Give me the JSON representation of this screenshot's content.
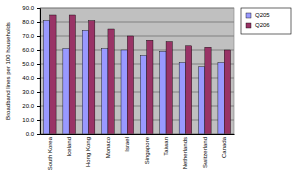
{
  "chart_data": {
    "type": "bar",
    "y_label": "Broadband lines per 100 households",
    "categories": [
      "South Korea",
      "Iceland",
      "Hong Kong",
      "Monaco",
      "Israel",
      "Singapore",
      "Taiwan",
      "Netherlands",
      "Switzerland",
      "Canada"
    ],
    "series": [
      {
        "name": "Q205",
        "color": "#9999ff",
        "values": [
          81,
          61,
          74,
          61,
          60,
          56,
          59,
          51,
          48,
          51
        ]
      },
      {
        "name": "Q206",
        "color": "#993366",
        "values": [
          85,
          85,
          81,
          75,
          70,
          67,
          66,
          63,
          62,
          60
        ]
      }
    ],
    "ylim": [
      0,
      90
    ],
    "yticks": [
      {
        "value": 0,
        "label": "0.0"
      },
      {
        "value": 10,
        "label": "10.0"
      },
      {
        "value": 20,
        "label": "20.0"
      },
      {
        "value": 30,
        "label": "30.0"
      },
      {
        "value": 40,
        "label": "40.0"
      },
      {
        "value": 50,
        "label": "50.0"
      },
      {
        "value": 60,
        "label": "60.0"
      },
      {
        "value": 70,
        "label": "70.0"
      },
      {
        "value": 80,
        "label": "80.0"
      },
      {
        "value": 90,
        "label": "90.0"
      }
    ],
    "grid": true,
    "legend": "right"
  }
}
